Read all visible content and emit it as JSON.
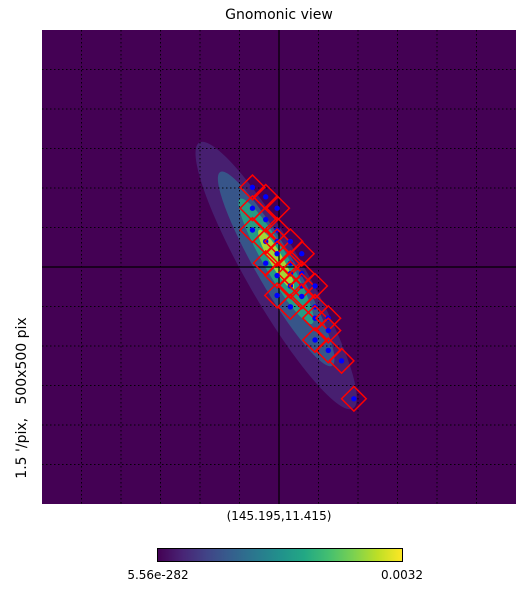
{
  "title": "Gnomonic view",
  "ylabel": "1.5 '/pix,   500x500 pix",
  "center_label": "(145.195,11.415)",
  "colorbar": {
    "min_label": "5.56e-282",
    "max_label": "0.0032",
    "cmap": "viridis"
  },
  "colors": {
    "background": "#440154",
    "marker": "#ff0000",
    "center_dot": "#0000ff",
    "grid": "#000000"
  },
  "chart_data": {
    "type": "heatmap",
    "projection": "gnomonic",
    "resolution_arcmin_per_pix": 1.5,
    "size_pix": [
      500,
      500
    ],
    "center_lonlat": [
      145.195,
      11.415
    ],
    "grid": true,
    "value_range": [
      5.56e-282,
      0.0032
    ],
    "tile_centers_pix": [
      [
        222,
        166
      ],
      [
        236,
        176
      ],
      [
        222,
        188
      ],
      [
        248,
        188
      ],
      [
        236,
        200
      ],
      [
        222,
        211
      ],
      [
        248,
        211
      ],
      [
        236,
        223
      ],
      [
        248,
        223
      ],
      [
        262,
        223
      ],
      [
        236,
        246
      ],
      [
        248,
        236
      ],
      [
        262,
        246
      ],
      [
        274,
        236
      ],
      [
        262,
        257
      ],
      [
        248,
        259
      ],
      [
        274,
        257
      ],
      [
        262,
        270
      ],
      [
        274,
        270
      ],
      [
        288,
        270
      ],
      [
        248,
        280
      ],
      [
        262,
        292
      ],
      [
        274,
        281
      ],
      [
        288,
        292
      ],
      [
        288,
        304
      ],
      [
        302,
        304
      ],
      [
        288,
        327
      ],
      [
        302,
        317
      ],
      [
        302,
        338
      ],
      [
        316,
        349
      ],
      [
        329,
        389
      ]
    ],
    "tile_size_pix": 26,
    "emission": [
      {
        "cx": 247,
        "cy": 259,
        "rx": 30,
        "ry": 162,
        "angle_deg": -30,
        "level": 0.12
      },
      {
        "cx": 247,
        "cy": 252,
        "rx": 20,
        "ry": 118,
        "angle_deg": -30,
        "level": 0.3
      },
      {
        "cx": 247,
        "cy": 244,
        "rx": 13,
        "ry": 76,
        "angle_deg": -30,
        "level": 0.55
      },
      {
        "cx": 247,
        "cy": 242,
        "rx": 7,
        "ry": 36,
        "angle_deg": -30,
        "level": 0.85
      }
    ]
  }
}
